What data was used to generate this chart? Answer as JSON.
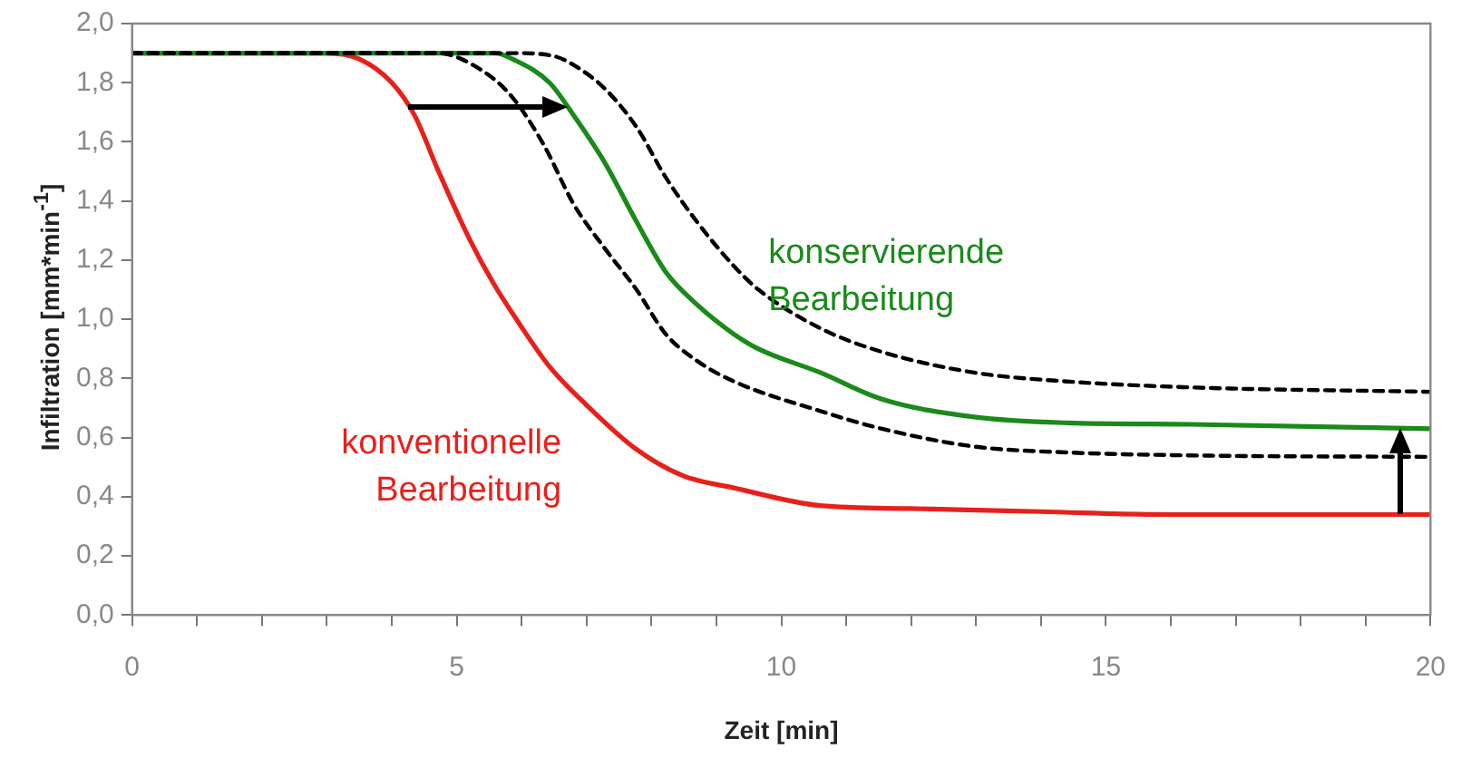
{
  "chart_data": {
    "type": "line",
    "xlabel": "Zeit [min]",
    "ylabel": "Infiltration [mm*min$^{-1}$]",
    "xlim": [
      0,
      20
    ],
    "ylim": [
      0,
      2
    ],
    "xticks": [
      0,
      {
        "value": 1,
        "label": null
      },
      {
        "value": 2,
        "label": null
      },
      {
        "value": 3,
        "label": null
      },
      {
        "value": 4,
        "label": null
      },
      5,
      {
        "value": 6,
        "label": null
      },
      {
        "value": 7,
        "label": null
      },
      {
        "value": 8,
        "label": null
      },
      {
        "value": 9,
        "label": null
      },
      10,
      {
        "value": 11,
        "label": null
      },
      {
        "value": 12,
        "label": null
      },
      {
        "value": 13,
        "label": null
      },
      {
        "value": 14,
        "label": null
      },
      15,
      {
        "value": 16,
        "label": null
      },
      {
        "value": 17,
        "label": null
      },
      {
        "value": 18,
        "label": null
      },
      {
        "value": 19,
        "label": null
      },
      20
    ],
    "yticks": [
      {
        "value": 0,
        "label": "0,0"
      },
      {
        "value": 0.2,
        "label": "0,2"
      },
      {
        "value": 0.4,
        "label": "0,4"
      },
      {
        "value": 0.6,
        "label": "0,6"
      },
      {
        "value": 0.8,
        "label": "0,8"
      },
      {
        "value": 1,
        "label": "1,0"
      },
      {
        "value": 1.2,
        "label": "1,2"
      },
      {
        "value": 1.4,
        "label": "1,4"
      },
      {
        "value": 1.6,
        "label": "1,6"
      },
      {
        "value": 1.8,
        "label": "1,8"
      },
      {
        "value": 2,
        "label": "2,0"
      }
    ],
    "grid": false,
    "legend": false,
    "series": [
      {
        "color": "#000000",
        "line_style": "dashed",
        "x": [
          0,
          5.9,
          6.5,
          6.8,
          7.28,
          7.77,
          8.22,
          8.7,
          9.27,
          9.65,
          10.6,
          11.55,
          12.97,
          14.4,
          16.3,
          20
        ],
        "values": [
          1.9,
          1.9,
          1.89,
          1.86,
          1.78,
          1.65,
          1.48,
          1.33,
          1.18,
          1.1,
          0.97,
          0.89,
          0.82,
          0.79,
          0.77,
          0.755
        ]
      },
      {
        "color": "#000000",
        "line_style": "dashed",
        "x": [
          0,
          4.7,
          5.4,
          5.86,
          6.34,
          6.8,
          7.28,
          7.77,
          8.22,
          8.7,
          9.27,
          10.6,
          11.55,
          12.97,
          14.4,
          16.3,
          20
        ],
        "values": [
          1.9,
          1.9,
          1.84,
          1.75,
          1.59,
          1.39,
          1.24,
          1.1,
          0.95,
          0.86,
          0.79,
          0.69,
          0.63,
          0.57,
          0.55,
          0.54,
          0.535
        ]
      },
      {
        "name": "konservierende Bearbeitung",
        "color": "#1a8a1a",
        "line_style": "solid",
        "x": [
          0,
          5.6,
          5.86,
          6.43,
          6.8,
          7.28,
          7.77,
          8.22,
          8.7,
          9.27,
          9.65,
          10.6,
          11.55,
          12.97,
          14.4,
          16.3,
          20
        ],
        "values": [
          1.9,
          1.9,
          1.88,
          1.8,
          1.69,
          1.53,
          1.33,
          1.16,
          1.05,
          0.95,
          0.9,
          0.82,
          0.73,
          0.67,
          0.65,
          0.645,
          0.63
        ]
      },
      {
        "name": "konventionelle Bearbeitung",
        "color": "#e8201a",
        "line_style": "solid",
        "x": [
          0,
          3,
          3.5,
          4,
          4.35,
          4.72,
          5.2,
          5.57,
          5.95,
          6.43,
          7,
          7.77,
          8.5,
          9.27,
          10.6,
          12,
          14,
          16,
          20
        ],
        "values": [
          1.9,
          1.9,
          1.88,
          1.8,
          1.69,
          1.5,
          1.27,
          1.12,
          0.99,
          0.84,
          0.71,
          0.56,
          0.47,
          0.43,
          0.37,
          0.36,
          0.35,
          0.34,
          0.34
        ]
      }
    ]
  }
}
